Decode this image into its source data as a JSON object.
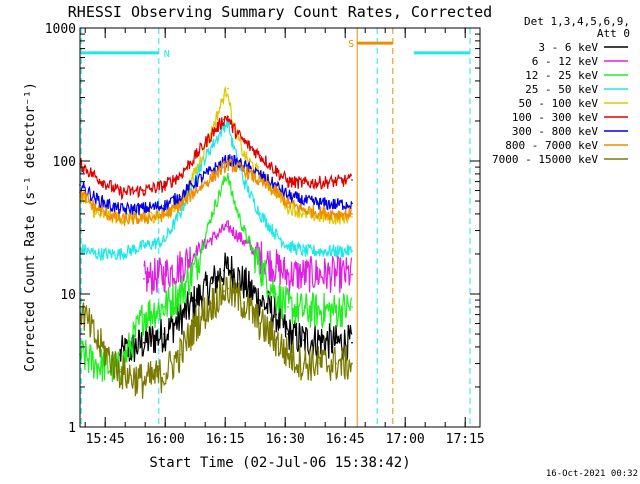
{
  "chart_data": {
    "type": "line",
    "title": "RHESSI Observing Summary Count Rates, Corrected",
    "xlabel": "Start Time (02-Jul-06 15:38:42)",
    "ylabel": "Corrected Count Rate (s⁻¹ detector⁻¹)",
    "yscale": "log",
    "ylim": [
      1,
      1000
    ],
    "xlim_minutes": [
      0,
      100
    ],
    "start_time": "15:38:42",
    "x_ticks": [
      {
        "label": "15:45",
        "minute": 6.3
      },
      {
        "label": "16:00",
        "minute": 21.3
      },
      {
        "label": "16:15",
        "minute": 36.3
      },
      {
        "label": "16:30",
        "minute": 51.3
      },
      {
        "label": "16:45",
        "minute": 66.3
      },
      {
        "label": "17:00",
        "minute": 81.3
      },
      {
        "label": "17:15",
        "minute": 96.3
      }
    ],
    "y_ticks": [
      {
        "label": "1",
        "value": 1
      },
      {
        "label": "10",
        "value": 10
      },
      {
        "label": "100",
        "value": 100
      },
      {
        "label": "1000",
        "value": 1000
      }
    ],
    "legend_header": [
      "Det 1,3,4,5,6,9,",
      "Att 0"
    ],
    "series_x_minutes": [
      0,
      4,
      10,
      16,
      21,
      25,
      29,
      33,
      36,
      37,
      38,
      41,
      45,
      49,
      52,
      56,
      60,
      64,
      68
    ],
    "series": [
      {
        "name": "3 - 6 keV",
        "color": "#000000",
        "values": [
          null,
          null,
          3.5,
          4.3,
          5,
          6.5,
          9,
          12,
          15,
          15.5,
          15,
          12,
          9,
          7,
          5,
          4.5,
          4.5,
          4.3,
          4.3
        ]
      },
      {
        "name": "6 - 12 keV",
        "color": "#e020e0",
        "values": [
          null,
          null,
          null,
          13,
          14,
          16,
          21,
          26,
          31,
          32,
          30,
          25,
          19,
          16,
          14,
          14,
          14,
          14,
          14
        ]
      },
      {
        "name": "12 - 25 keV",
        "color": "#20ee20",
        "values": [
          3.5,
          3,
          2.7,
          7,
          8,
          10,
          16,
          40,
          70,
          80,
          55,
          30,
          16,
          10,
          8,
          7.5,
          7.5,
          7.5,
          8
        ]
      },
      {
        "name": "25 - 50 keV",
        "color": "#20e8e8",
        "values": [
          22,
          20,
          20,
          23,
          25,
          40,
          80,
          130,
          180,
          200,
          140,
          70,
          40,
          28,
          23,
          21,
          21,
          21,
          21
        ]
      },
      {
        "name": "50 - 100 keV",
        "color": "#e0c800",
        "values": [
          58,
          40,
          37,
          38,
          39,
          48,
          85,
          170,
          310,
          350,
          200,
          110,
          80,
          58,
          45,
          40,
          38,
          37,
          38
        ]
      },
      {
        "name": "100 - 300 keV",
        "color": "#e00000",
        "values": [
          95,
          76,
          58,
          60,
          65,
          78,
          110,
          160,
          205,
          215,
          180,
          140,
          110,
          85,
          70,
          68,
          69,
          70,
          72
        ]
      },
      {
        "name": "300 - 800 keV",
        "color": "#0000e8",
        "values": [
          66,
          52,
          43,
          44,
          46,
          54,
          70,
          85,
          98,
          102,
          100,
          92,
          78,
          65,
          55,
          50,
          48,
          47,
          48
        ]
      },
      {
        "name": "800 - 7000 keV",
        "color": "#f08c00",
        "values": [
          58,
          44,
          36,
          37,
          39,
          46,
          60,
          75,
          90,
          94,
          92,
          85,
          70,
          58,
          48,
          43,
          41,
          40,
          40
        ]
      },
      {
        "name": "7000 - 15000 keV",
        "color": "#7a7a00",
        "values": [
          8,
          4.5,
          2.6,
          2.2,
          2.5,
          3.5,
          6,
          8.5,
          10.5,
          11,
          10,
          8.5,
          6,
          4.5,
          3.5,
          3,
          3,
          3,
          3
        ]
      }
    ],
    "annotations": [
      {
        "label": "N",
        "color": "#20e8e8",
        "start_minute": 0.3,
        "end_minute": 19.7,
        "level": 650
      },
      {
        "label": "S",
        "color": "#f08c00",
        "start_minute": 69.3,
        "end_minute": 78.2,
        "level": 770
      },
      {
        "label": "",
        "color": "#20e8e8",
        "start_minute": 83.5,
        "end_minute": 97.5,
        "level": 650
      }
    ],
    "vertical_markers": [
      {
        "color": "#20e8e8",
        "style": "dashed",
        "minute": 0.3
      },
      {
        "color": "#20e8e8",
        "style": "dashed",
        "minute": 19.7
      },
      {
        "color": "#f08c00",
        "style": "solid",
        "minute": 69.3
      },
      {
        "color": "#f08c00",
        "style": "dashed",
        "minute": 78.2
      },
      {
        "color": "#20e8e8",
        "style": "dashed",
        "minute": 74.3
      },
      {
        "color": "#20e8e8",
        "style": "dashed",
        "minute": 97.5
      }
    ],
    "gap_minutes": [
      70,
      100
    ]
  },
  "footer": {
    "timestamp": "16-Oct-2021 00:32"
  }
}
